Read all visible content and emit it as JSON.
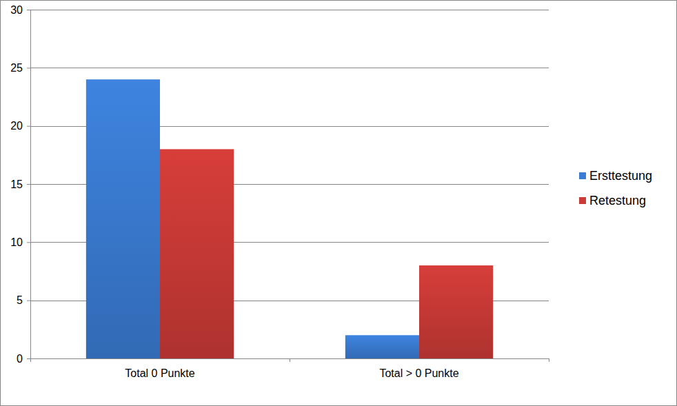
{
  "chart_data": {
    "type": "bar",
    "categories": [
      "Total 0 Punkte",
      "Total > 0 Punkte"
    ],
    "series": [
      {
        "name": "Ersttestung",
        "color": "#3b7dd4",
        "values": [
          24,
          2
        ]
      },
      {
        "name": "Retestung",
        "color": "#cc3b37",
        "values": [
          18,
          8
        ]
      }
    ],
    "ylim": [
      0,
      30
    ],
    "yticks": [
      0,
      5,
      10,
      15,
      20,
      25,
      30
    ],
    "grid": true,
    "legend": "right"
  }
}
